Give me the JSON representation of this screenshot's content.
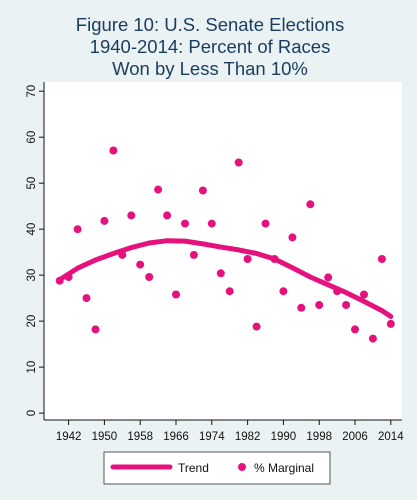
{
  "chart_data": {
    "type": "scatter",
    "title_lines": [
      "Figure 10: U.S. Senate Elections",
      "1940-2014: Percent of Races",
      "Won by Less Than 10%"
    ],
    "xlabel": "",
    "ylabel": "",
    "xlim": [
      1936.5,
      2016.5
    ],
    "ylim": [
      -1.5,
      72
    ],
    "x_ticks": [
      1942,
      1950,
      1958,
      1966,
      1974,
      1982,
      1990,
      1998,
      2006,
      2014
    ],
    "y_ticks": [
      0,
      10,
      20,
      30,
      40,
      50,
      60,
      70
    ],
    "grid": false,
    "legend_position": "bottom",
    "series": [
      {
        "name": "Trend",
        "kind": "line",
        "color": "#e5127d",
        "points": [
          [
            1940,
            29
          ],
          [
            1944,
            31.5
          ],
          [
            1948,
            33.3
          ],
          [
            1952,
            34.7
          ],
          [
            1956,
            36
          ],
          [
            1960,
            37
          ],
          [
            1964,
            37.5
          ],
          [
            1968,
            37.4
          ],
          [
            1972,
            36.8
          ],
          [
            1976,
            36.1
          ],
          [
            1980,
            35.5
          ],
          [
            1984,
            34.7
          ],
          [
            1988,
            33.5
          ],
          [
            1992,
            31.6
          ],
          [
            1996,
            29.6
          ],
          [
            2000,
            27.9
          ],
          [
            2004,
            26.2
          ],
          [
            2008,
            24.3
          ],
          [
            2012,
            22.3
          ],
          [
            2014,
            21
          ]
        ]
      },
      {
        "name": "% Marginal",
        "kind": "scatter",
        "color": "#e5127d",
        "points": [
          [
            1940,
            28.8
          ],
          [
            1942,
            29.6
          ],
          [
            1944,
            40
          ],
          [
            1946,
            25
          ],
          [
            1948,
            18.2
          ],
          [
            1950,
            41.8
          ],
          [
            1952,
            57.1
          ],
          [
            1954,
            34.4
          ],
          [
            1956,
            43
          ],
          [
            1958,
            32.3
          ],
          [
            1960,
            29.6
          ],
          [
            1962,
            48.6
          ],
          [
            1964,
            43
          ],
          [
            1966,
            25.8
          ],
          [
            1968,
            41.2
          ],
          [
            1970,
            34.4
          ],
          [
            1972,
            48.4
          ],
          [
            1974,
            41.2
          ],
          [
            1976,
            30.4
          ],
          [
            1978,
            26.5
          ],
          [
            1980,
            54.5
          ],
          [
            1982,
            33.5
          ],
          [
            1984,
            18.8
          ],
          [
            1986,
            41.2
          ],
          [
            1988,
            33.5
          ],
          [
            1990,
            26.5
          ],
          [
            1992,
            38.2
          ],
          [
            1994,
            22.9
          ],
          [
            1996,
            45.4
          ],
          [
            1998,
            23.5
          ],
          [
            2000,
            29.5
          ],
          [
            2002,
            26.5
          ],
          [
            2004,
            23.5
          ],
          [
            2006,
            18.2
          ],
          [
            2008,
            25.8
          ],
          [
            2010,
            16.2
          ],
          [
            2012,
            33.5
          ],
          [
            2014,
            19.4
          ]
        ]
      }
    ]
  }
}
